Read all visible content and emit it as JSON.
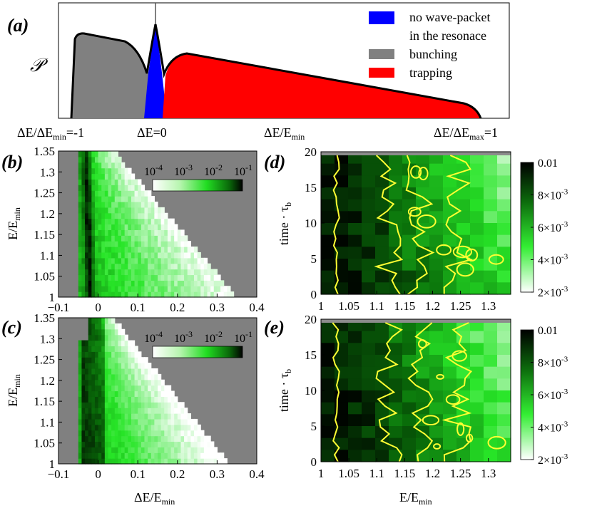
{
  "chart_data": [
    {
      "panel": "(a)",
      "type": "area",
      "ylabel": "𝒫",
      "x_marks": [
        {
          "text": "ΔE/ΔE",
          "sub": "min",
          "suffix": "=-1"
        },
        {
          "text": "ΔE=0",
          "sub": "",
          "suffix": ""
        },
        {
          "text": "ΔE/E",
          "sub": "min",
          "suffix": ""
        },
        {
          "text": "ΔE/ΔE",
          "sub": "max",
          "suffix": "=1"
        }
      ],
      "series": [
        {
          "name": "no wave-packet in the resonace",
          "line1": "no wave-packet",
          "line2": "in the resonace",
          "color": "#0000ff"
        },
        {
          "name": "bunching",
          "color": "#808080"
        },
        {
          "name": "trapping",
          "color": "#ff0000"
        }
      ]
    },
    {
      "panel": "(b)",
      "type": "heatmap",
      "xlabel": "",
      "ylabel": "E/E",
      "ylabel_sub": "min",
      "xlim": [
        -0.1,
        0.4
      ],
      "ylim": [
        1,
        1.35
      ],
      "xticks": [
        "−0.1",
        "0",
        "0.1",
        "0.2",
        "0.3",
        "0.4"
      ],
      "yticks": [
        "1",
        "1.05",
        "1.1",
        "1.15",
        "1.2",
        "1.25",
        "1.3",
        "1.35"
      ],
      "colorbar": {
        "scale": "log",
        "ticks": [
          "10",
          "10",
          "10",
          "10"
        ],
        "exponents": [
          "-4",
          "-3",
          "-2",
          "-1"
        ]
      },
      "resonance_dE_min": -0.048,
      "resonance_dE_max": 0.35,
      "background": "#808080"
    },
    {
      "panel": "(c)",
      "type": "heatmap",
      "xlabel": "ΔE/E",
      "xlabel_sub": "min",
      "ylabel": "E/E",
      "ylabel_sub": "min",
      "xlim": [
        -0.1,
        0.4
      ],
      "ylim": [
        1,
        1.35
      ],
      "xticks": [
        "−0.1",
        "0",
        "0.1",
        "0.2",
        "0.3",
        "0.4"
      ],
      "yticks": [
        "1",
        "1.05",
        "1.1",
        "1.15",
        "1.2",
        "1.25",
        "1.3",
        "1.35"
      ],
      "colorbar": {
        "scale": "log",
        "ticks": [
          "10",
          "10",
          "10",
          "10"
        ],
        "exponents": [
          "-4",
          "-3",
          "-2",
          "-1"
        ]
      },
      "resonance_dE_min": -0.048,
      "resonance_dE_max": 0.33,
      "background": "#808080"
    },
    {
      "panel": "(d)",
      "type": "heatmap",
      "xlabel": "",
      "ylabel": "time · τ",
      "ylabel_sub": "b",
      "xlim": [
        1,
        1.34
      ],
      "ylim": [
        0,
        20
      ],
      "xticks": [
        "1",
        "1.05",
        "1.1",
        "1.15",
        "1.2",
        "1.25",
        "1.3"
      ],
      "yticks": [
        "0",
        "5",
        "10",
        "15",
        "20"
      ],
      "colorbar": {
        "scale": "linear",
        "range": [
          0.002,
          0.01
        ],
        "labels": [
          {
            "text": "0.01",
            "exp": ""
          },
          {
            "text": "8×10",
            "exp": "-3"
          },
          {
            "text": "6×10",
            "exp": "-3"
          },
          {
            "text": "4×10",
            "exp": "-3"
          },
          {
            "text": "2×10",
            "exp": "-3"
          }
        ]
      },
      "contour_color": "#ffff33",
      "seed": 7
    },
    {
      "panel": "(e)",
      "type": "heatmap",
      "xlabel": "E/E",
      "xlabel_sub": "min",
      "ylabel": "time · τ",
      "ylabel_sub": "b",
      "xlim": [
        1,
        1.34
      ],
      "ylim": [
        0,
        20
      ],
      "xticks": [
        "1",
        "1.05",
        "1.1",
        "1.15",
        "1.2",
        "1.25",
        "1.3"
      ],
      "yticks": [
        "0",
        "5",
        "10",
        "15",
        "20"
      ],
      "colorbar": {
        "scale": "linear",
        "range": [
          0.002,
          0.01
        ],
        "labels": [
          {
            "text": "0.01",
            "exp": ""
          },
          {
            "text": "8×10",
            "exp": "-3"
          },
          {
            "text": "6×10",
            "exp": "-3"
          },
          {
            "text": "4×10",
            "exp": "-3"
          },
          {
            "text": "2×10",
            "exp": "-3"
          }
        ]
      },
      "contour_color": "#ffff33",
      "seed": 19
    }
  ]
}
